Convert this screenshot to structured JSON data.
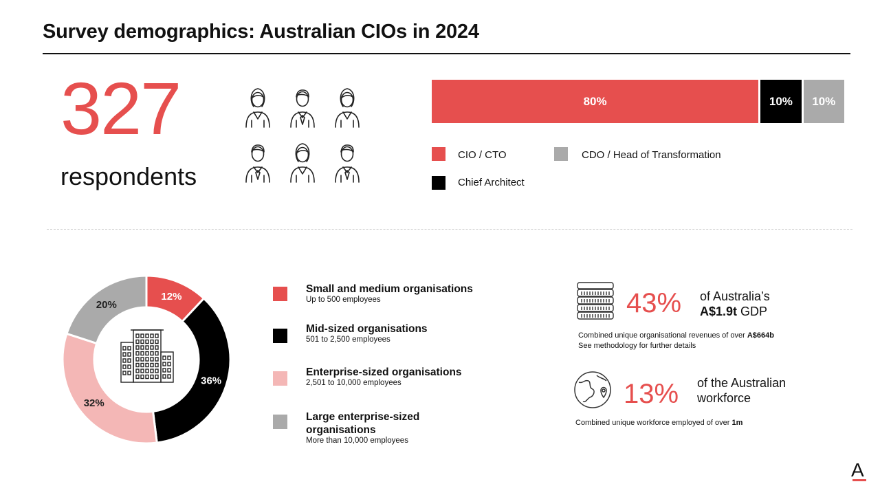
{
  "page": {
    "title": "Survey demographics: Australian CIOs in 2024",
    "logo": "A"
  },
  "respondents": {
    "count": "327",
    "label": "respondents",
    "icons": [
      "female-user-icon",
      "male-user-icon",
      "female-user-icon",
      "male-user-icon",
      "female-user-icon",
      "male-user-icon"
    ]
  },
  "colors": {
    "red": "#e64f4e",
    "black": "#000000",
    "grey": "#aaaaaa",
    "pink": "#f4b7b6"
  },
  "roles": {
    "legend": {
      "cio": "CIO / CTO",
      "cdo": "CDO / Head of Transformation",
      "arch": "Chief Architect"
    }
  },
  "organisations": {
    "items": [
      {
        "title": "Small and medium organisations",
        "subtitle": "Up to 500 employees"
      },
      {
        "title": "Mid-sized organisations",
        "subtitle": "501 to 2,500 employees"
      },
      {
        "title": "Enterprise-sized organisations",
        "subtitle": "2,501 to 10,000 employees"
      },
      {
        "title": "Large enterprise-sized organisations",
        "subtitle": "More than 10,000 employees"
      }
    ]
  },
  "stats": {
    "gdp": {
      "value": "43%",
      "line1": "of Australia’s",
      "line2_bold": "A$1.9t",
      "line2_rest": " GDP",
      "note1_prefix": "Combined unique organisational revenues of over ",
      "note1_bold": "A$664b",
      "note2": "See methodology for further details"
    },
    "workforce": {
      "value": "13%",
      "line1": "of the Australian",
      "line2": "workforce",
      "note_prefix": "Combined unique workforce employed of over ",
      "note_bold": "1m"
    }
  },
  "chart_data": [
    {
      "type": "bar",
      "orientation": "horizontal-stacked",
      "series": [
        {
          "name": "CIO / CTO",
          "value": 80,
          "label": "80%",
          "color": "#e64f4e"
        },
        {
          "name": "Chief Architect",
          "value": 10,
          "label": "10%",
          "color": "#000000"
        },
        {
          "name": "CDO / Head of Transformation",
          "value": 10,
          "label": "10%",
          "color": "#aaaaaa"
        }
      ]
    },
    {
      "type": "pie",
      "donut": true,
      "slices": [
        {
          "name": "Small and medium organisations",
          "value": 12,
          "label": "12%",
          "color": "#e64f4e"
        },
        {
          "name": "Mid-sized organisations",
          "value": 36,
          "label": "36%",
          "color": "#000000"
        },
        {
          "name": "Enterprise-sized organisations",
          "value": 32,
          "label": "32%",
          "color": "#f4b7b6"
        },
        {
          "name": "Large enterprise-sized organisations",
          "value": 20,
          "label": "20%",
          "color": "#aaaaaa"
        }
      ],
      "center_icon": "office-building-icon"
    }
  ]
}
